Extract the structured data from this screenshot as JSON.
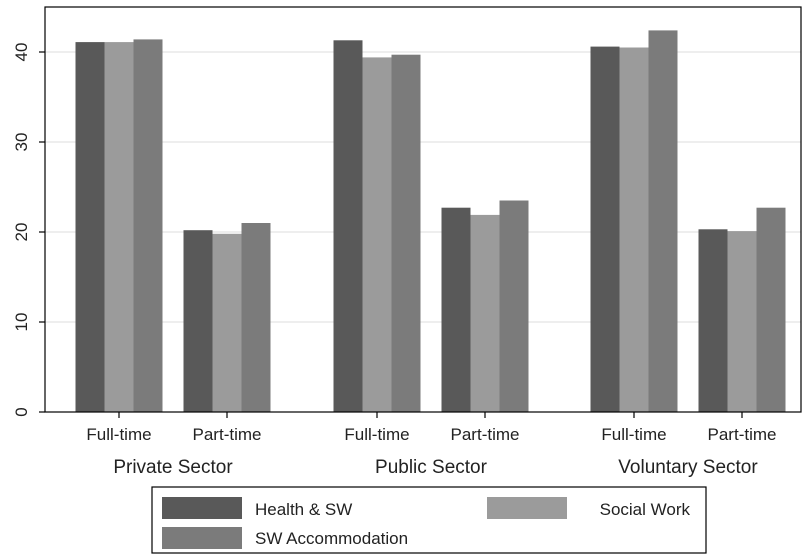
{
  "chart_data": {
    "type": "bar",
    "groups": [
      {
        "label": "Private Sector",
        "categories": [
          "Full-time",
          "Part-time"
        ]
      },
      {
        "label": "Public Sector",
        "categories": [
          "Full-time",
          "Part-time"
        ]
      },
      {
        "label": "Voluntary Sector",
        "categories": [
          "Full-time",
          "Part-time"
        ]
      }
    ],
    "series": [
      {
        "name": "Health & SW",
        "color": "#595959",
        "values": [
          41.1,
          20.2,
          41.3,
          22.7,
          40.6,
          20.3
        ]
      },
      {
        "name": "Social Work",
        "color": "#9b9b9b",
        "values": [
          41.1,
          19.8,
          39.4,
          21.9,
          40.5,
          20.1
        ]
      },
      {
        "name": "SW Accommodation",
        "color": "#7b7b7b",
        "values": [
          41.4,
          21.0,
          39.7,
          23.5,
          42.4,
          22.7
        ]
      }
    ],
    "title": "",
    "xlabel": "",
    "ylabel": "",
    "ylim": [
      0,
      45
    ],
    "yticks": [
      0,
      10,
      20,
      30,
      40
    ],
    "grid": true,
    "legend": "bottom"
  }
}
